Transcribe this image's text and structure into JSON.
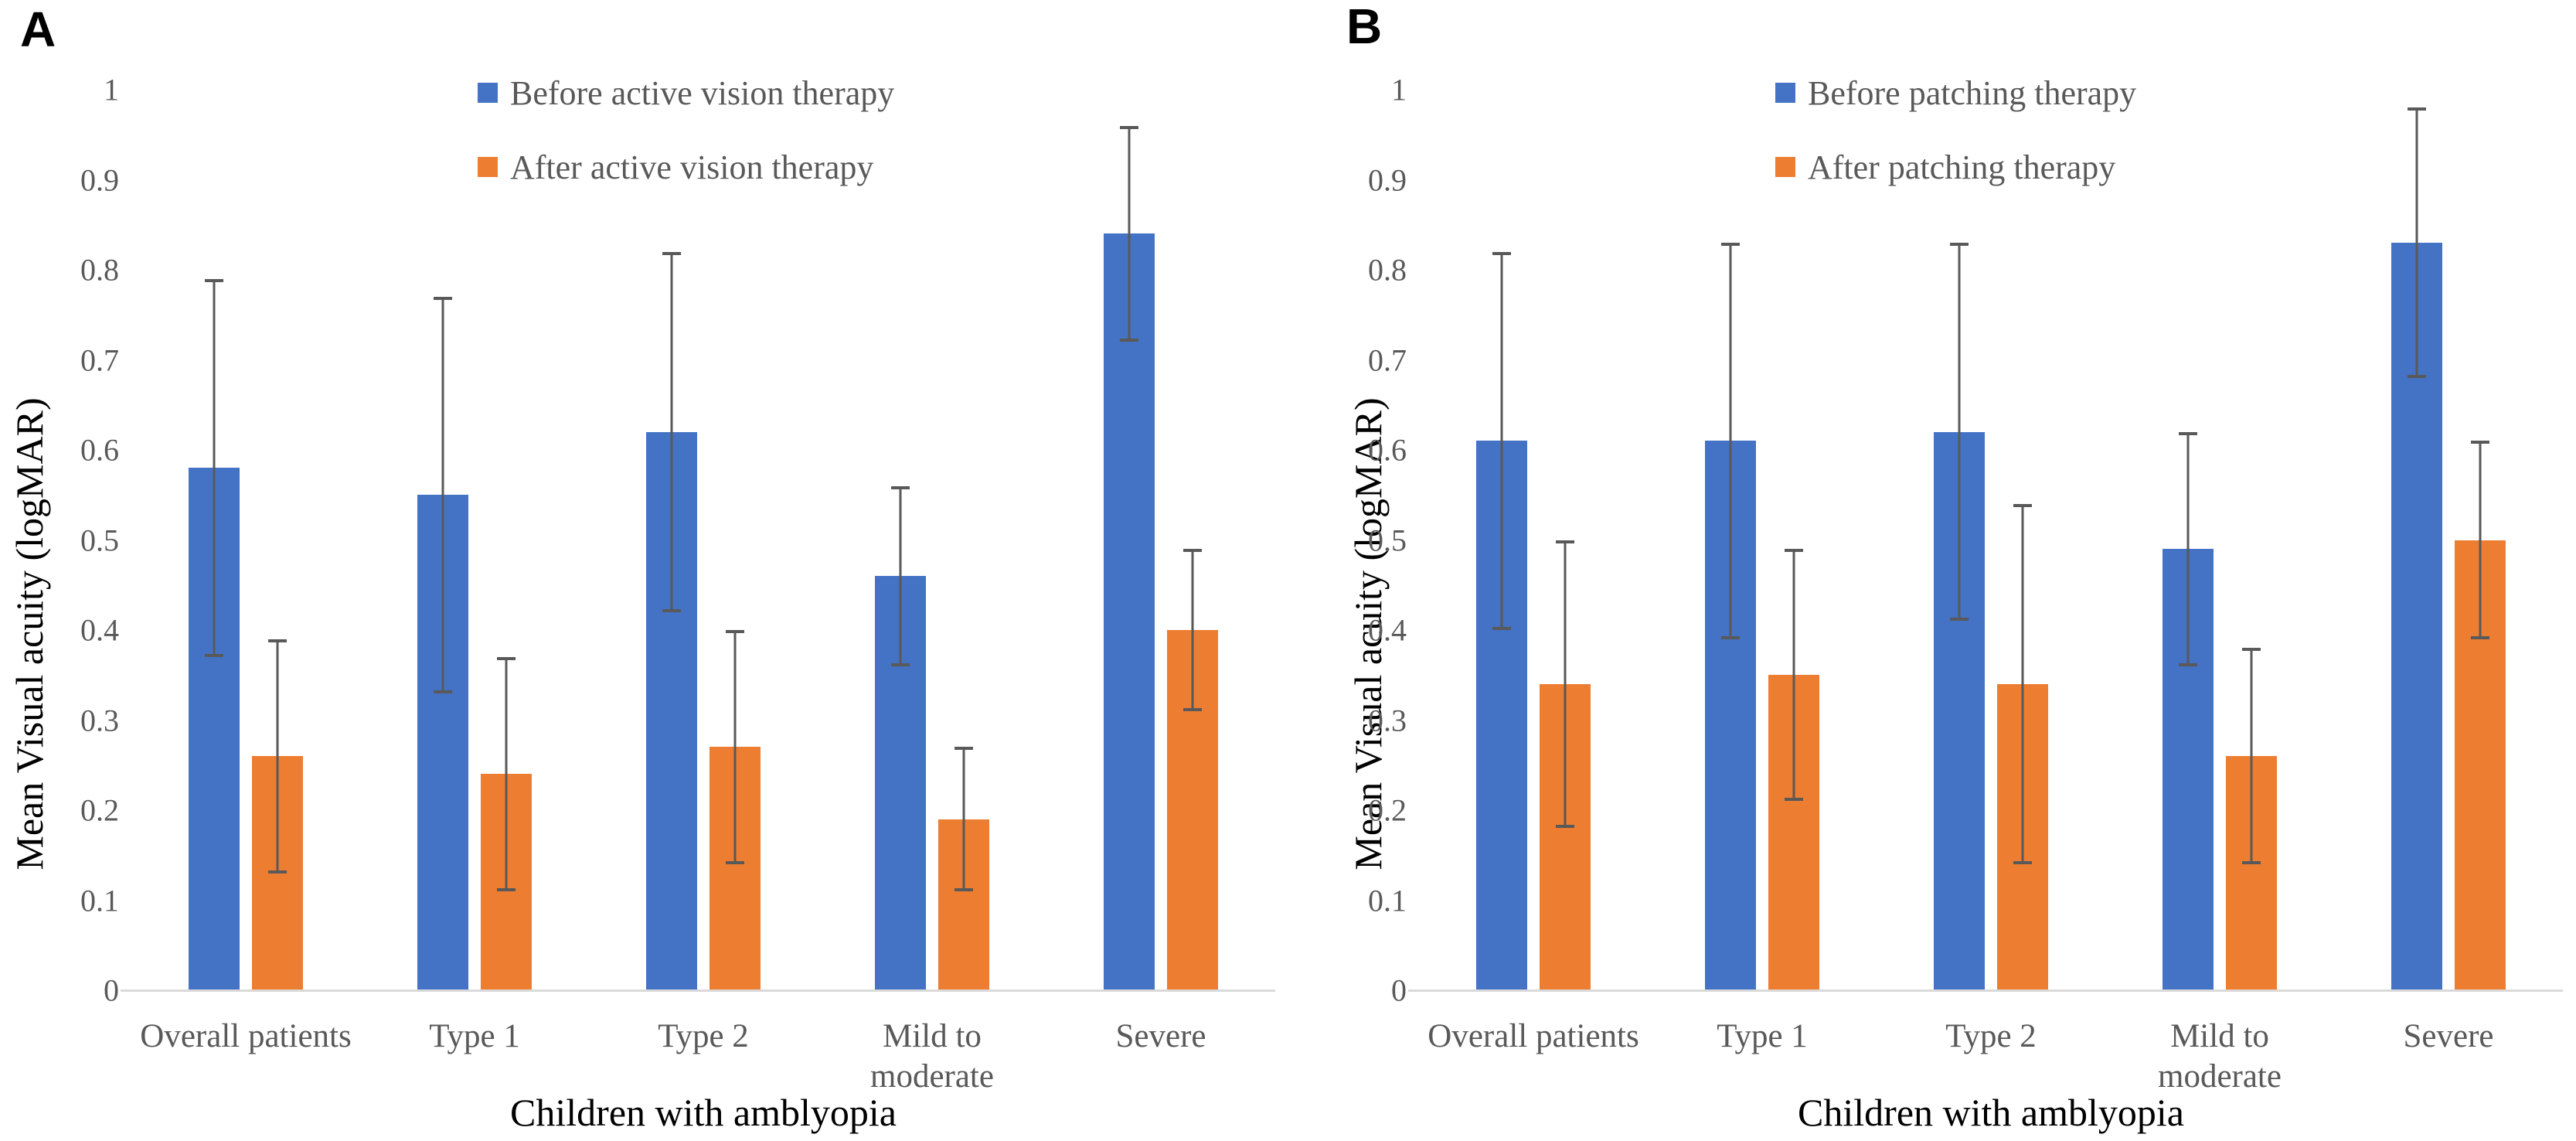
{
  "figure_type": "grouped-bar-charts-with-error-bars",
  "colors": {
    "before": "#4472C4",
    "after": "#ED7D31",
    "error_bar": "#595959",
    "axis_line": "#D9D9D9",
    "tick_text": "#595959",
    "category_text": "#595959",
    "title_text": "#000000"
  },
  "chart_data": [
    {
      "type": "bar",
      "panel_label": "A",
      "categories": [
        "Overall patients",
        "Type 1",
        "Type 2",
        "Mild to\nmoderate",
        "Severe"
      ],
      "series": [
        {
          "name": "Before active vision therapy",
          "color": "#4472C4",
          "values": [
            0.58,
            0.55,
            0.62,
            0.46,
            0.84
          ],
          "error_high": [
            0.79,
            0.77,
            0.82,
            0.56,
            0.96
          ],
          "error_low": [
            0.37,
            0.33,
            0.42,
            0.36,
            0.72
          ]
        },
        {
          "name": "After active vision therapy",
          "color": "#ED7D31",
          "values": [
            0.26,
            0.24,
            0.27,
            0.19,
            0.4
          ],
          "error_high": [
            0.39,
            0.37,
            0.4,
            0.27,
            0.49
          ],
          "error_low": [
            0.13,
            0.11,
            0.14,
            0.11,
            0.31
          ]
        }
      ],
      "xlabel": "Children with amblyopia",
      "ylabel": "Mean Visual acuity (logMAR)",
      "ylim": [
        0,
        1
      ],
      "yticks": [
        "1",
        "0.9",
        "0.8",
        "0.7",
        "0.6",
        "0.5",
        "0.4",
        "0.3",
        "0.2",
        "0.1",
        "0"
      ],
      "legend_position": "top-center",
      "grid": false
    },
    {
      "type": "bar",
      "panel_label": "B",
      "categories": [
        "Overall patients",
        "Type 1",
        "Type 2",
        "Mild to\nmoderate",
        "Severe"
      ],
      "series": [
        {
          "name": "Before patching therapy",
          "color": "#4472C4",
          "values": [
            0.61,
            0.61,
            0.62,
            0.49,
            0.83
          ],
          "error_high": [
            0.82,
            0.83,
            0.83,
            0.62,
            0.98
          ],
          "error_low": [
            0.4,
            0.39,
            0.41,
            0.36,
            0.68
          ]
        },
        {
          "name": "After patching therapy",
          "color": "#ED7D31",
          "values": [
            0.34,
            0.35,
            0.34,
            0.26,
            0.5
          ],
          "error_high": [
            0.5,
            0.49,
            0.54,
            0.38,
            0.61
          ],
          "error_low": [
            0.18,
            0.21,
            0.14,
            0.14,
            0.39
          ]
        }
      ],
      "xlabel": "Children with amblyopia",
      "ylabel": "Mean Visual acuity (logMAR)",
      "ylim": [
        0,
        1
      ],
      "yticks": [
        "1",
        "0.9",
        "0.8",
        "0.7",
        "0.6",
        "0.5",
        "0.4",
        "0.3",
        "0.2",
        "0.1",
        "0"
      ],
      "legend_position": "top-center",
      "grid": false
    }
  ]
}
